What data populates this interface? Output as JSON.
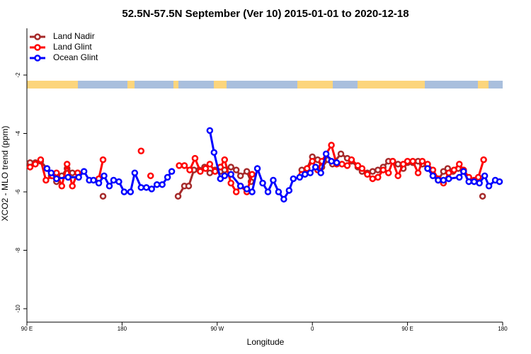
{
  "chart_data": {
    "type": "line",
    "title": "52.5N-57.5N September (Ver 10)   2015-01-01 to 2020-12-18",
    "x_label": "Longitude",
    "y_label": "XCO2 - MLO trend (ppm)",
    "xlim": [
      90,
      540
    ],
    "xticks": [
      {
        "value": 90,
        "label": "90 E"
      },
      180,
      {
        "value": 270,
        "label": "90 W"
      },
      {
        "value": 360,
        "label": "0"
      },
      {
        "value": 450,
        "label": "90 E"
      },
      {
        "value": 540,
        "label": "180"
      }
    ],
    "ylim": [
      -10.46,
      -0.4
    ],
    "yticks": [
      -10,
      -8,
      -6,
      -4,
      -2
    ],
    "legend": "top-left",
    "series": [
      {
        "name": "Land Nadir",
        "color": "#a52a2a",
        "x": [
          93,
          98,
          103,
          109,
          113,
          118,
          123,
          128,
          133,
          138,
          null,
          162,
          null,
          233,
          239,
          243,
          248,
          253,
          258,
          263,
          268,
          273,
          277,
          283,
          288,
          292,
          298,
          302,
          null,
          350,
          355,
          360,
          365,
          369,
          375,
          379,
          387,
          393,
          397,
          403,
          407,
          412,
          417,
          422,
          427,
          432,
          436,
          441,
          446,
          450,
          455,
          460,
          464,
          469,
          474,
          479,
          484,
          488,
          493,
          498,
          503,
          null,
          521
        ],
        "values": [
          -5.0,
          -5.0,
          -4.95,
          -5.2,
          -5.45,
          -5.65,
          -5.45,
          -5.2,
          -5.35,
          -5.35,
          null,
          -6.15,
          null,
          -6.15,
          -5.8,
          -5.8,
          -5.25,
          -5.25,
          -5.15,
          -5.35,
          -5.25,
          -5.3,
          -5.25,
          -5.15,
          -5.25,
          -5.45,
          -5.3,
          -5.65,
          null,
          -5.25,
          -5.2,
          -4.8,
          -4.9,
          -5.15,
          -4.9,
          -5.05,
          -4.7,
          -4.85,
          -4.95,
          -5.15,
          -5.3,
          -5.35,
          -5.3,
          -5.25,
          -5.15,
          -4.95,
          -4.95,
          -5.05,
          -5.2,
          -5.0,
          -5.0,
          -4.95,
          -5.05,
          -5.2,
          -5.45,
          -5.6,
          -5.3,
          -5.2,
          -5.3,
          -5.2,
          -5.3,
          null,
          -6.15
        ]
      },
      {
        "name": "Land Glint",
        "color": "#ff0000",
        "x": [
          93,
          98,
          103,
          108,
          114,
          118,
          123,
          128,
          133,
          138,
          null,
          158,
          162,
          null,
          198,
          null,
          207,
          null,
          234,
          239,
          244,
          249,
          254,
          259,
          263,
          268,
          273,
          277,
          283,
          288,
          292,
          298,
          303,
          null,
          350,
          355,
          360,
          365,
          369,
          378,
          383,
          388,
          393,
          397,
          403,
          407,
          412,
          417,
          422,
          427,
          432,
          436,
          441,
          446,
          450,
          455,
          460,
          464,
          469,
          474,
          479,
          484,
          489,
          494,
          499,
          503,
          508,
          513,
          517,
          522
        ],
        "values": [
          -5.15,
          -5.05,
          -4.9,
          -5.6,
          -5.45,
          -5.35,
          -5.8,
          -5.05,
          -5.8,
          -5.35,
          null,
          -5.55,
          -4.9,
          null,
          -4.6,
          null,
          -5.45,
          null,
          -5.1,
          -5.1,
          -5.25,
          -4.85,
          -5.3,
          -5.2,
          -5.05,
          -5.3,
          -5.15,
          -4.9,
          -5.7,
          -6.0,
          -5.8,
          -6.0,
          -5.4,
          null,
          -5.4,
          -5.2,
          -4.95,
          -5.25,
          -4.95,
          -4.4,
          -5.05,
          -5.05,
          -5.1,
          -4.9,
          -5.1,
          -5.2,
          -5.4,
          -5.55,
          -5.5,
          -5.25,
          -5.35,
          -4.95,
          -5.45,
          -5.05,
          -4.95,
          -4.95,
          -5.35,
          -4.95,
          -5.05,
          -5.25,
          -5.55,
          -5.7,
          -5.35,
          -5.25,
          -5.05,
          -5.25,
          -5.5,
          -5.6,
          -5.5,
          -4.9
        ]
      },
      {
        "name": "Ocean Glint",
        "color": "#0000ff",
        "x": [
          109,
          113,
          118,
          129,
          139,
          144,
          149,
          153,
          158,
          163,
          168,
          172,
          177,
          182,
          188,
          192,
          198,
          203,
          208,
          213,
          218,
          223,
          227,
          null,
          263,
          267,
          273,
          277,
          283,
          292,
          298,
          303,
          308,
          313,
          318,
          323,
          328,
          333,
          338,
          342,
          348,
          353,
          358,
          363,
          368,
          373,
          378,
          383,
          null,
          469,
          474,
          479,
          484,
          489,
          499,
          503,
          508,
          513,
          518,
          523,
          527,
          533,
          537
        ],
        "values": [
          -5.2,
          -5.35,
          -5.55,
          -5.5,
          -5.5,
          -5.3,
          -5.6,
          -5.6,
          -5.7,
          -5.45,
          -5.8,
          -5.6,
          -5.65,
          -6.0,
          -6.0,
          -5.35,
          -5.85,
          -5.85,
          -5.9,
          -5.75,
          -5.75,
          -5.5,
          -5.3,
          null,
          -3.9,
          -4.65,
          -5.55,
          -5.45,
          -5.4,
          -5.8,
          -5.9,
          -6.0,
          -5.2,
          -5.7,
          -6.0,
          -5.6,
          -6.0,
          -6.25,
          -5.95,
          -5.55,
          -5.5,
          -5.4,
          -5.35,
          -5.15,
          -5.35,
          -4.7,
          -4.95,
          -5.0,
          null,
          -5.2,
          -5.45,
          -5.6,
          -5.6,
          -5.55,
          -5.5,
          -5.3,
          -5.65,
          -5.65,
          -5.7,
          -5.45,
          -5.8,
          -5.6,
          -5.65
        ]
      }
    ]
  }
}
